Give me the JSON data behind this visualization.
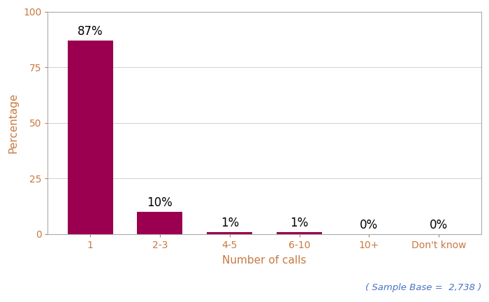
{
  "categories": [
    "1",
    "2-3",
    "4-5",
    "6-10",
    "10+",
    "Don't know"
  ],
  "values": [
    87,
    10,
    1,
    1,
    0,
    0
  ],
  "bar_color": "#9B0050",
  "xlabel": "Number of calls",
  "ylabel": "Percentage",
  "ylim": [
    0,
    100
  ],
  "yticks": [
    0,
    25,
    50,
    75,
    100
  ],
  "bar_labels": [
    "87%",
    "10%",
    "1%",
    "1%",
    "0%",
    "0%"
  ],
  "sample_base_text": "( Sample Base =  2,738 )",
  "background_color": "#ffffff",
  "grid_color": "#d0d0d0",
  "label_fontsize": 12,
  "axis_label_fontsize": 11,
  "tick_label_fontsize": 10,
  "tick_color": "#c87941",
  "sample_text_color": "#4472c4",
  "bar_label_color": "#000000"
}
